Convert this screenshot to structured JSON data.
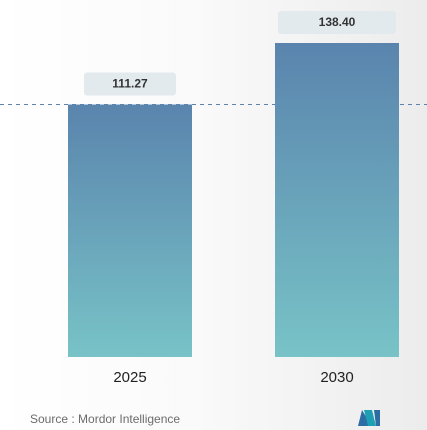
{
  "chart_data": {
    "type": "bar",
    "categories": [
      "2025",
      "2030"
    ],
    "values": [
      111.27,
      138.4
    ],
    "value_labels": [
      "111.27",
      "138.40"
    ],
    "source": "Source : Mordor Intelligence"
  }
}
